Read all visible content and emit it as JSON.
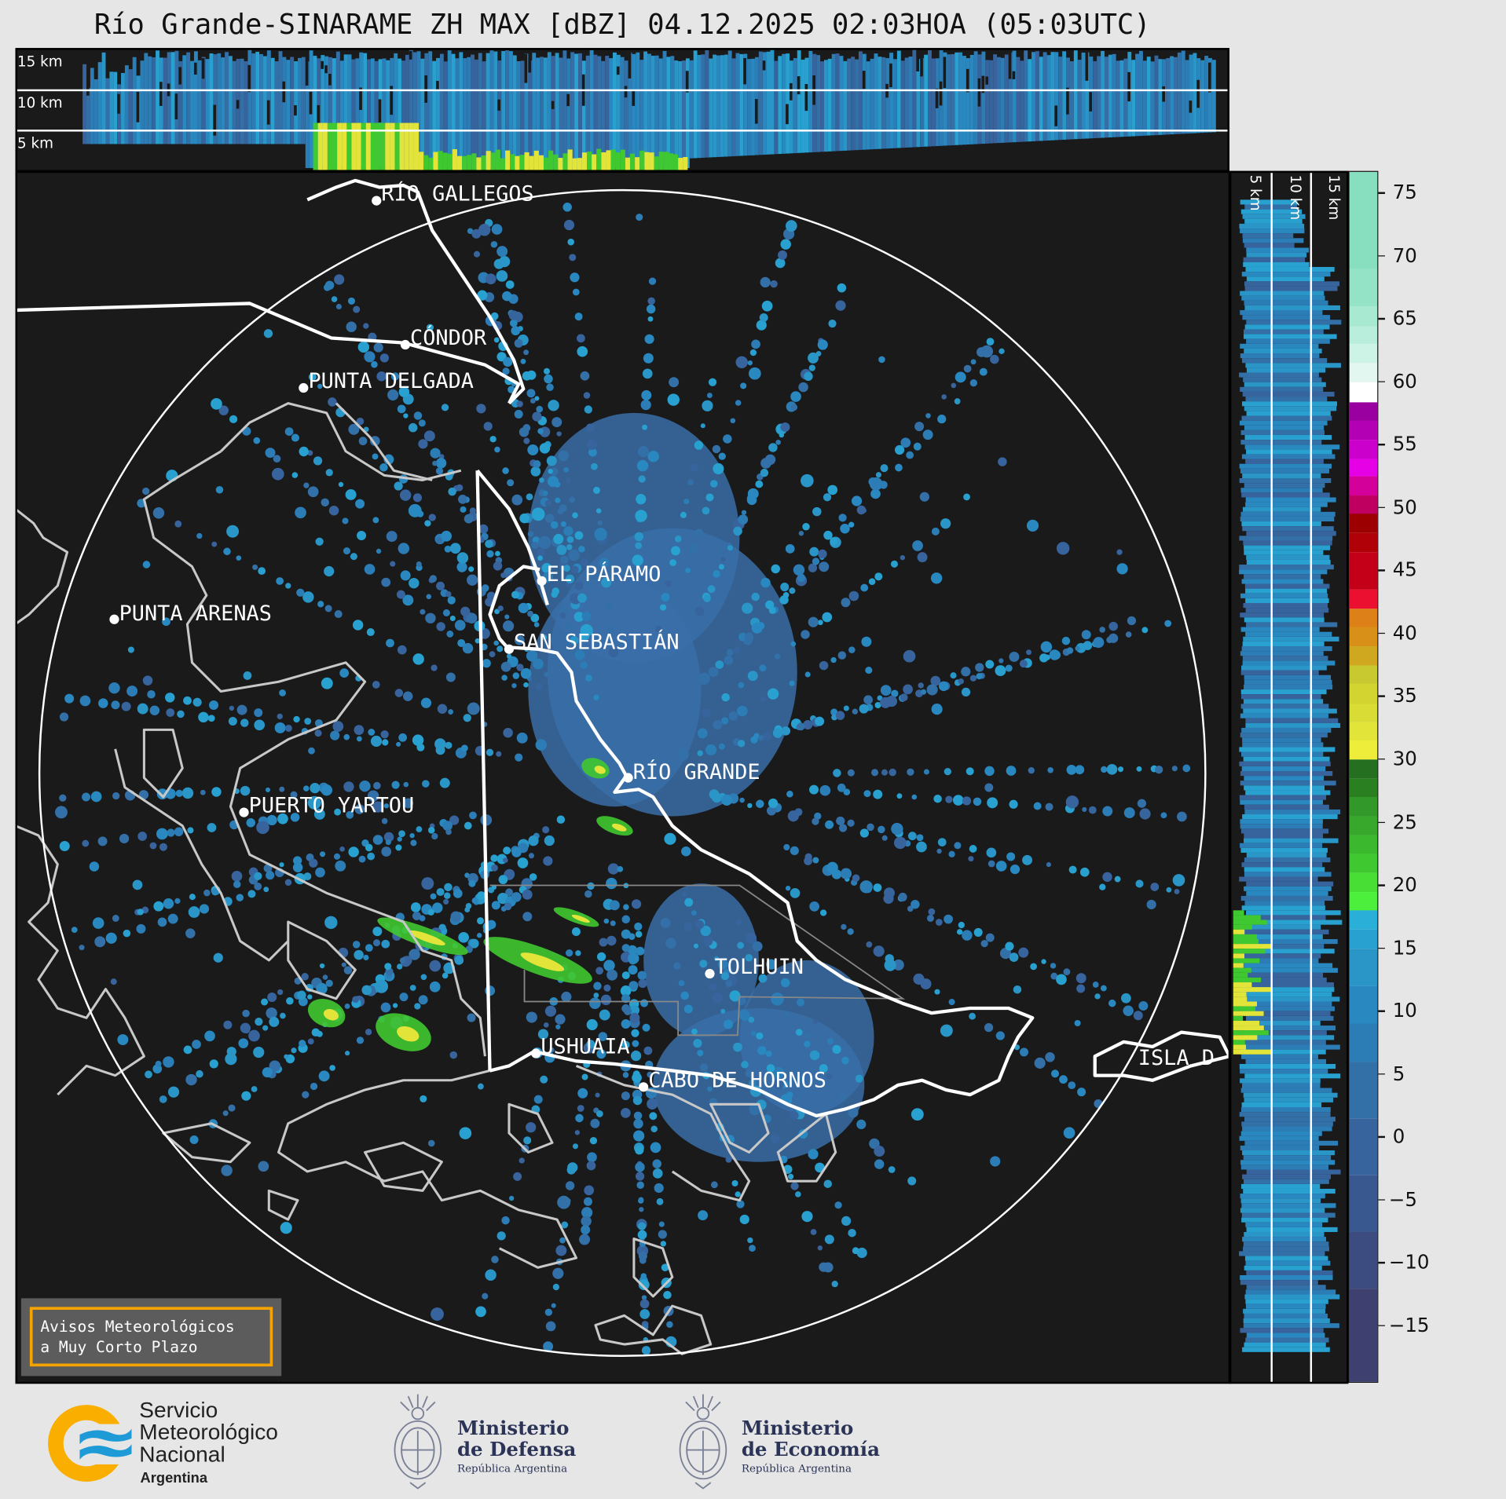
{
  "title": "Río Grande-SINARAME ZH MAX [dBZ] 04.12.2025 02:03HOA (05:03UTC)",
  "top_panel": {
    "height_labels": [
      "15 km",
      "10 km",
      "5 km"
    ]
  },
  "side_panel": {
    "height_labels": [
      "5 km",
      "10 km",
      "15 km"
    ]
  },
  "map": {
    "cities": [
      {
        "name": "RÍO GALLEGOS"
      },
      {
        "name": "CÓNDOR"
      },
      {
        "name": "PUNTA DELGADA"
      },
      {
        "name": "EL PÁRAMO"
      },
      {
        "name": "SAN SEBASTIÁN"
      },
      {
        "name": "PUNTA ARENAS"
      },
      {
        "name": "RÍO GRANDE"
      },
      {
        "name": "PUERTO YARTOU"
      },
      {
        "name": "TOLHUIN"
      },
      {
        "name": "USHUAIA"
      },
      {
        "name": "CABO DE HORNOS"
      },
      {
        "name": "ISLA D"
      }
    ],
    "colors": {
      "background": "#1a1a1a",
      "argentina_coast": "#ffffff",
      "chile_coast": "#c8c8c8",
      "range_ring": "#ffffff"
    }
  },
  "colorbar": {
    "unit": "dBZ",
    "range": [
      -19.6,
      76.7
    ],
    "ticks": [
      "−15",
      "−10",
      "−5",
      "0",
      "5",
      "10",
      "15",
      "20",
      "25",
      "30",
      "35",
      "40",
      "45",
      "50",
      "55",
      "60",
      "65",
      "70",
      "75"
    ],
    "tick_values": [
      -15,
      -10,
      -5,
      0,
      5,
      10,
      15,
      20,
      25,
      30,
      35,
      40,
      45,
      50,
      55,
      60,
      65,
      70,
      75
    ],
    "bands": [
      {
        "from": 69.0,
        "to": 76.7,
        "color": "#88dfbf"
      },
      {
        "from": 66.0,
        "to": 69.0,
        "color": "#95e3c6"
      },
      {
        "from": 64.4,
        "to": 66.0,
        "color": "#a8e9d2"
      },
      {
        "from": 63.0,
        "to": 64.4,
        "color": "#b9eedc"
      },
      {
        "from": 61.5,
        "to": 63.0,
        "color": "#cdf3e6"
      },
      {
        "from": 60.0,
        "to": 61.5,
        "color": "#e1f7ef"
      },
      {
        "from": 58.4,
        "to": 60.0,
        "color": "#ffffff"
      },
      {
        "from": 56.9,
        "to": 58.4,
        "color": "#9a00a0"
      },
      {
        "from": 55.4,
        "to": 56.9,
        "color": "#b400b4"
      },
      {
        "from": 53.9,
        "to": 55.4,
        "color": "#cc00cc"
      },
      {
        "from": 52.5,
        "to": 53.9,
        "color": "#e600e6"
      },
      {
        "from": 51.0,
        "to": 52.5,
        "color": "#d4009a"
      },
      {
        "from": 49.5,
        "to": 51.0,
        "color": "#c00060"
      },
      {
        "from": 48.0,
        "to": 49.5,
        "color": "#9c0000"
      },
      {
        "from": 46.5,
        "to": 48.0,
        "color": "#b00008"
      },
      {
        "from": 43.5,
        "to": 46.5,
        "color": "#c40018"
      },
      {
        "from": 42.0,
        "to": 43.5,
        "color": "#ec1030"
      },
      {
        "from": 40.5,
        "to": 42.0,
        "color": "#de8018"
      },
      {
        "from": 39.0,
        "to": 40.5,
        "color": "#d89018"
      },
      {
        "from": 37.5,
        "to": 39.0,
        "color": "#d0a820"
      },
      {
        "from": 36.0,
        "to": 37.5,
        "color": "#c8c830"
      },
      {
        "from": 34.4,
        "to": 36.0,
        "color": "#d4d430"
      },
      {
        "from": 33.0,
        "to": 34.4,
        "color": "#d8dc34"
      },
      {
        "from": 31.5,
        "to": 33.0,
        "color": "#e2e43a"
      },
      {
        "from": 30.0,
        "to": 31.5,
        "color": "#eeee3a"
      },
      {
        "from": 28.5,
        "to": 30.0,
        "color": "#257020"
      },
      {
        "from": 27.0,
        "to": 28.5,
        "color": "#2a8020"
      },
      {
        "from": 25.5,
        "to": 27.0,
        "color": "#32982a"
      },
      {
        "from": 24.0,
        "to": 25.5,
        "color": "#38a82c"
      },
      {
        "from": 22.5,
        "to": 24.0,
        "color": "#3cb82e"
      },
      {
        "from": 21.0,
        "to": 22.5,
        "color": "#40c830"
      },
      {
        "from": 19.5,
        "to": 21.0,
        "color": "#48de36"
      },
      {
        "from": 18.0,
        "to": 19.5,
        "color": "#4cf03c"
      },
      {
        "from": 16.5,
        "to": 18.0,
        "color": "#2ab0d8"
      },
      {
        "from": 15.0,
        "to": 16.5,
        "color": "#28a0d0"
      },
      {
        "from": 12.0,
        "to": 15.0,
        "color": "#2a96c8"
      },
      {
        "from": 9.0,
        "to": 12.0,
        "color": "#2a88c0"
      },
      {
        "from": 6.0,
        "to": 9.0,
        "color": "#2c7cb6"
      },
      {
        "from": 1.5,
        "to": 6.0,
        "color": "#3470a8"
      },
      {
        "from": -3.0,
        "to": 1.5,
        "color": "#38649e"
      },
      {
        "from": -7.5,
        "to": -3.0,
        "color": "#3a5890"
      },
      {
        "from": -12.0,
        "to": -7.5,
        "color": "#3c4c80"
      },
      {
        "from": -19.6,
        "to": -12.0,
        "color": "#3e4070"
      }
    ]
  },
  "warning_box": {
    "line1": "Avisos Meteorológicos",
    "line2": "a Muy Corto Plazo",
    "border_color": "#f5a300"
  },
  "footer": {
    "smn": {
      "line1": "Servicio",
      "line2": "Meteorológico",
      "line3": "Nacional",
      "line4": "Argentina"
    },
    "defensa": {
      "line1": "Ministerio",
      "line2": "de Defensa",
      "line3": "República Argentina"
    },
    "economia": {
      "line1": "Ministerio",
      "line2": "de Economía",
      "line3": "República Argentina"
    }
  }
}
